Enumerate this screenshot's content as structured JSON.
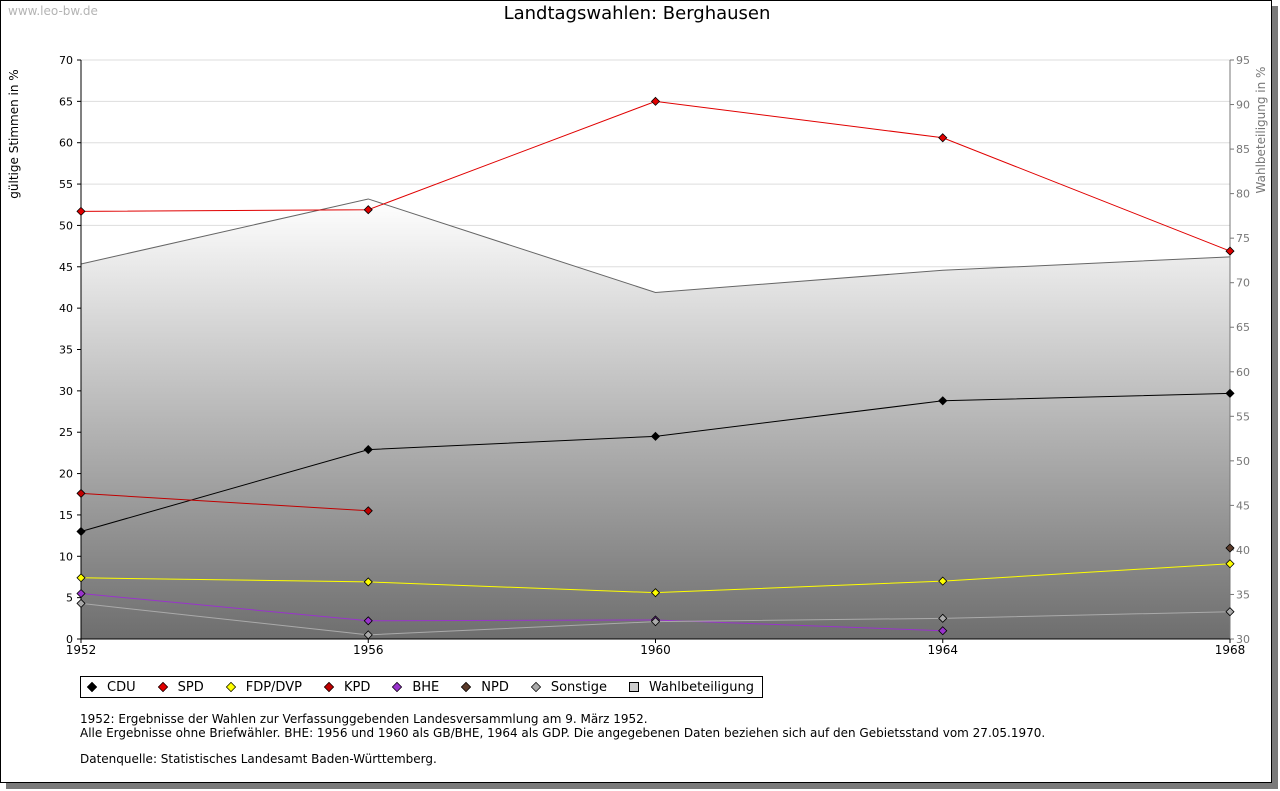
{
  "watermark": "www.leo-bw.de",
  "chart_data": {
    "type": "line",
    "title": "Landtagswahlen: Berghausen",
    "ylabel": "gültige Stimmen in %",
    "y2label": "Wahlbeteiligung in %",
    "x": [
      "1952",
      "1956",
      "1960",
      "1964",
      "1968"
    ],
    "ylim": [
      0,
      70
    ],
    "y2lim": [
      30,
      95
    ],
    "yticks": [
      0,
      5,
      10,
      15,
      20,
      25,
      30,
      35,
      40,
      45,
      50,
      55,
      60,
      65,
      70
    ],
    "y2ticks": [
      30,
      35,
      40,
      45,
      50,
      55,
      60,
      65,
      70,
      75,
      80,
      85,
      90,
      95
    ],
    "grid": true,
    "legend_position": "bottom",
    "area_series": {
      "name": "Wahlbeteiligung",
      "axis": "right",
      "values": [
        72.1,
        79.4,
        68.9,
        71.4,
        72.9
      ],
      "color": "#999999"
    },
    "series": [
      {
        "name": "CDU",
        "color": "#000000",
        "values": [
          13.0,
          22.9,
          24.5,
          28.8,
          29.7
        ]
      },
      {
        "name": "SPD",
        "color": "#e00000",
        "values": [
          51.7,
          51.9,
          65.0,
          60.6,
          46.9
        ]
      },
      {
        "name": "FDP/DVP",
        "color": "#ffff00",
        "values": [
          7.4,
          6.9,
          5.6,
          7.0,
          9.1
        ]
      },
      {
        "name": "KPD",
        "color": "#c00000",
        "values": [
          17.6,
          15.5,
          null,
          null,
          null
        ]
      },
      {
        "name": "BHE",
        "color": "#9933cc",
        "values": [
          5.5,
          2.2,
          2.3,
          1.0,
          null
        ]
      },
      {
        "name": "NPD",
        "color": "#5a3a2a",
        "values": [
          null,
          null,
          null,
          null,
          11.0
        ]
      },
      {
        "name": "Sonstige",
        "color": "#aaaaaa",
        "values": [
          4.3,
          0.5,
          2.1,
          2.5,
          3.3
        ]
      }
    ]
  },
  "legend": [
    {
      "label": "CDU",
      "color": "#000000",
      "shape": "diamond"
    },
    {
      "label": "SPD",
      "color": "#e00000",
      "shape": "diamond"
    },
    {
      "label": "FDP/DVP",
      "color": "#ffff00",
      "shape": "diamond"
    },
    {
      "label": "KPD",
      "color": "#c00000",
      "shape": "diamond"
    },
    {
      "label": "BHE",
      "color": "#9933cc",
      "shape": "diamond"
    },
    {
      "label": "NPD",
      "color": "#5a3a2a",
      "shape": "diamond"
    },
    {
      "label": "Sonstige",
      "color": "#aaaaaa",
      "shape": "diamond"
    },
    {
      "label": "Wahlbeteiligung",
      "color": "#cccccc",
      "shape": "square"
    }
  ],
  "notes": {
    "line1": "1952: Ergebnisse der Wahlen zur Verfassunggebenden Landesversammlung am 9. März 1952.",
    "line2": "Alle Ergebnisse ohne Briefwähler. BHE: 1956 und 1960 als GB/BHE, 1964 als GDP. Die angegebenen Daten beziehen sich auf den Gebietsstand vom 27.05.1970.",
    "source": "Datenquelle: Statistisches Landesamt Baden-Württemberg."
  }
}
